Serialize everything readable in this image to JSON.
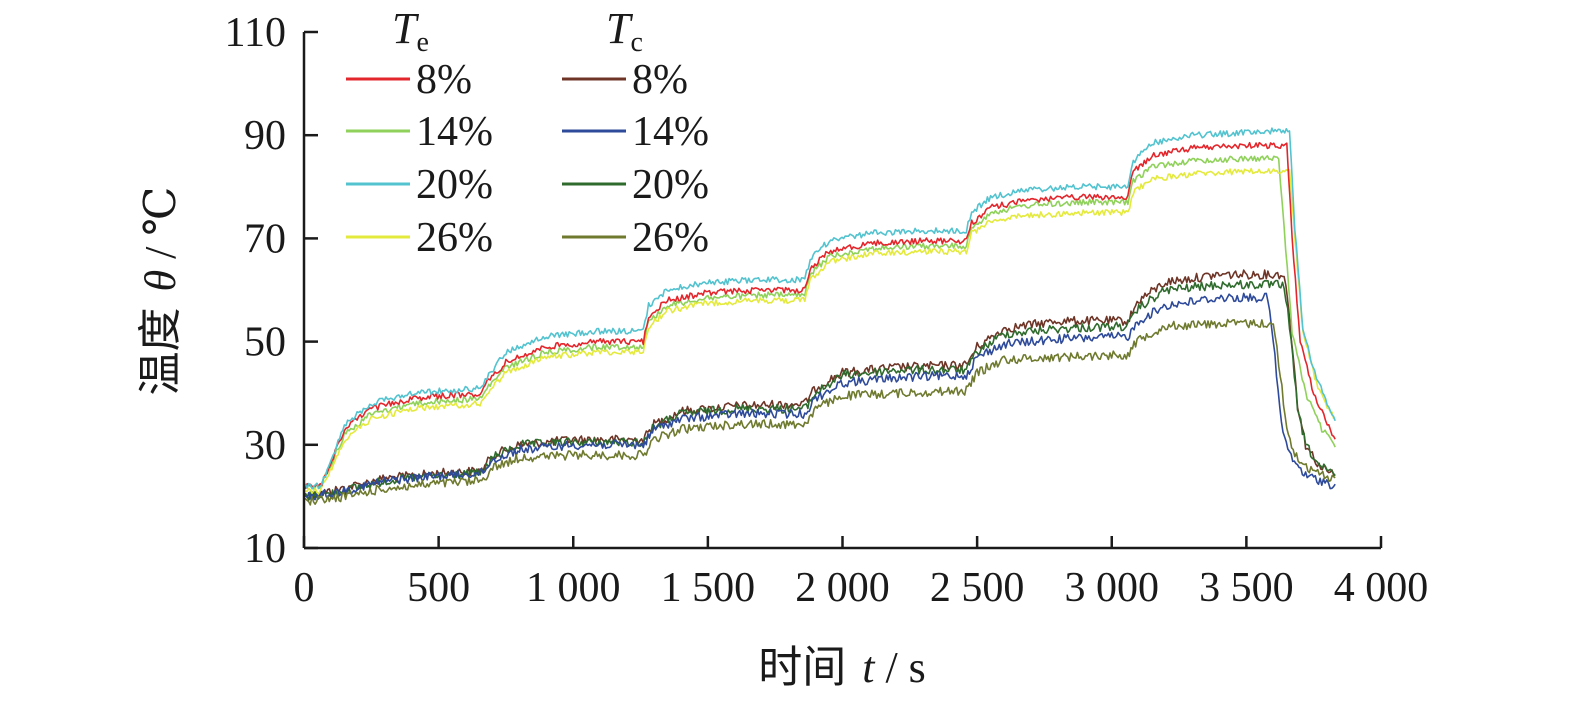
{
  "chart_data": {
    "type": "line",
    "title": "",
    "xlabel": "时间 t / s",
    "xlabel_main": "时间",
    "xlabel_var": "t",
    "xlabel_unit": " / s",
    "ylabel": "温度 θ / ℃",
    "ylabel_main": "温度",
    "ylabel_var": "θ",
    "ylabel_unit": " / ℃",
    "xlim": [
      0,
      4000
    ],
    "ylim": [
      10,
      110
    ],
    "x_ticks": [
      0,
      500,
      1000,
      1500,
      2000,
      2500,
      3000,
      3500,
      4000
    ],
    "x_tick_labels": [
      "0",
      "500",
      "1 000",
      "1 500",
      "2 000",
      "2 500",
      "3 000",
      "3 500",
      "4 000"
    ],
    "y_ticks": [
      10,
      30,
      50,
      70,
      90,
      110
    ],
    "y_tick_labels": [
      "10",
      "30",
      "50",
      "70",
      "90",
      "110"
    ],
    "grid": false,
    "legend_placement": "top-left",
    "legend_groups": [
      {
        "symbol": "T",
        "subscript": "e"
      },
      {
        "symbol": "T",
        "subscript": "c"
      }
    ],
    "series": [
      {
        "name": "8%",
        "group": 0,
        "color": "#e3262c",
        "x": [
          0,
          60,
          80,
          150,
          250,
          400,
          660,
          680,
          750,
          900,
          1100,
          1260,
          1280,
          1350,
          1500,
          1700,
          1860,
          1880,
          1950,
          2100,
          2300,
          2460,
          2480,
          2550,
          2700,
          2900,
          3060,
          3080,
          3150,
          3300,
          3500,
          3650,
          3670,
          3700,
          3750,
          3800,
          3830
        ],
        "y": [
          22,
          22,
          24,
          33,
          37,
          39,
          40,
          42,
          46,
          49,
          50,
          50,
          55,
          58,
          59.5,
          60,
          60,
          64,
          67.5,
          69,
          69.5,
          69.5,
          73,
          76,
          77.5,
          78,
          78,
          83,
          86,
          87.5,
          88,
          88,
          70,
          50,
          40,
          34,
          31
        ]
      },
      {
        "name": "14%",
        "group": 0,
        "color": "#8fd15a",
        "x": [
          0,
          60,
          80,
          150,
          250,
          400,
          660,
          680,
          750,
          900,
          1100,
          1260,
          1280,
          1350,
          1500,
          1700,
          1860,
          1880,
          1950,
          2100,
          2300,
          2460,
          2480,
          2550,
          2700,
          2900,
          3060,
          3080,
          3150,
          3300,
          3500,
          3620,
          3640,
          3670,
          3720,
          3780,
          3830
        ],
        "y": [
          22,
          22,
          24,
          32,
          36,
          38,
          39,
          41,
          45,
          48,
          49,
          49,
          54,
          57,
          58.5,
          59,
          59,
          63,
          66.5,
          68,
          68.5,
          68.5,
          72,
          75,
          76.5,
          77,
          77,
          81,
          84,
          85,
          85.5,
          85.5,
          72,
          52,
          40,
          33,
          30
        ]
      },
      {
        "name": "20%",
        "group": 0,
        "color": "#52c3cf",
        "x": [
          0,
          60,
          80,
          150,
          250,
          400,
          660,
          680,
          750,
          900,
          1100,
          1260,
          1280,
          1350,
          1500,
          1700,
          1860,
          1880,
          1950,
          2100,
          2300,
          2460,
          2480,
          2550,
          2700,
          2900,
          3060,
          3080,
          3150,
          3300,
          3500,
          3660,
          3680,
          3710,
          3760,
          3800,
          3830
        ],
        "y": [
          22,
          22,
          24,
          34,
          38,
          40,
          41,
          43,
          48,
          51,
          52,
          52,
          57,
          60,
          61.5,
          62,
          62,
          66,
          69.5,
          71,
          71.5,
          71.5,
          75,
          78,
          79.5,
          80,
          80,
          85,
          88.5,
          90,
          90.5,
          91,
          72,
          52,
          43,
          38,
          35
        ]
      },
      {
        "name": "26%",
        "group": 0,
        "color": "#e4ea3c",
        "x": [
          0,
          60,
          80,
          150,
          250,
          400,
          660,
          680,
          750,
          900,
          1100,
          1260,
          1280,
          1350,
          1500,
          1700,
          1860,
          1880,
          1950,
          2100,
          2300,
          2460,
          2480,
          2550,
          2700,
          2900,
          3060,
          3080,
          3150,
          3300,
          3500,
          3660,
          3680,
          3710,
          3760,
          3800,
          3830
        ],
        "y": [
          21,
          21,
          23,
          31,
          35,
          37,
          38,
          40,
          44,
          47,
          48,
          48,
          53,
          56,
          57.5,
          58,
          58,
          62,
          65.5,
          67,
          67.5,
          67.5,
          71,
          73.5,
          74.5,
          75,
          75,
          79,
          81.5,
          82.5,
          83,
          83,
          70,
          52,
          42,
          37,
          35
        ]
      },
      {
        "name": "8%",
        "group": 1,
        "color": "#6e3527",
        "x": [
          0,
          100,
          300,
          500,
          660,
          700,
          800,
          1000,
          1260,
          1300,
          1400,
          1600,
          1860,
          1900,
          2000,
          2200,
          2460,
          2500,
          2600,
          2800,
          3060,
          3100,
          3200,
          3400,
          3640,
          3660,
          3690,
          3720,
          3770,
          3830
        ],
        "y": [
          20,
          21,
          23.5,
          24.5,
          25,
          28,
          30,
          31,
          31,
          34,
          36.5,
          37.5,
          38,
          41,
          44,
          45,
          45.5,
          49,
          52.5,
          54,
          54,
          58,
          61.5,
          63,
          63,
          55,
          38,
          30,
          26,
          24
        ]
      },
      {
        "name": "14%",
        "group": 1,
        "color": "#2e4a9a",
        "x": [
          0,
          100,
          300,
          500,
          660,
          700,
          800,
          1000,
          1260,
          1300,
          1400,
          1600,
          1860,
          1900,
          2000,
          2200,
          2460,
          2500,
          2600,
          2800,
          3060,
          3100,
          3200,
          3400,
          3580,
          3600,
          3630,
          3660,
          3720,
          3780,
          3830
        ],
        "y": [
          20,
          20.5,
          23,
          24,
          24.5,
          27,
          29,
          30,
          30,
          33,
          35,
          36,
          36,
          39,
          42,
          43,
          43.5,
          47,
          49.5,
          50.5,
          51,
          54,
          57,
          58.5,
          58.5,
          50,
          34,
          28,
          24,
          23,
          22
        ]
      },
      {
        "name": "20%",
        "group": 1,
        "color": "#2f6b2c",
        "x": [
          0,
          100,
          300,
          500,
          660,
          700,
          800,
          1000,
          1260,
          1300,
          1400,
          1600,
          1860,
          1900,
          2000,
          2200,
          2460,
          2500,
          2600,
          2800,
          3060,
          3100,
          3200,
          3400,
          3640,
          3660,
          3690,
          3720,
          3770,
          3830
        ],
        "y": [
          20,
          20.5,
          23,
          24,
          24.5,
          27.5,
          30,
          30.5,
          30.5,
          33.5,
          36,
          37,
          37,
          40,
          43.5,
          44.5,
          44.5,
          48,
          51.5,
          52.5,
          53,
          56.5,
          60,
          61,
          61,
          53,
          37,
          30,
          26,
          24
        ]
      },
      {
        "name": "26%",
        "group": 1,
        "color": "#6f7a2e",
        "x": [
          0,
          100,
          300,
          500,
          660,
          700,
          800,
          1000,
          1260,
          1300,
          1400,
          1600,
          1860,
          1900,
          2000,
          2200,
          2460,
          2500,
          2600,
          2800,
          3060,
          3100,
          3200,
          3400,
          3600,
          3620,
          3650,
          3680,
          3740,
          3790,
          3830
        ],
        "y": [
          19,
          19.5,
          21.5,
          22.5,
          23,
          25.5,
          27.5,
          28,
          28,
          31,
          33,
          34,
          34,
          37,
          39.5,
          40,
          40.5,
          44,
          46.5,
          47,
          47.5,
          50.5,
          53,
          53.5,
          53.5,
          46,
          33,
          28,
          25,
          24,
          23.5
        ]
      }
    ]
  }
}
